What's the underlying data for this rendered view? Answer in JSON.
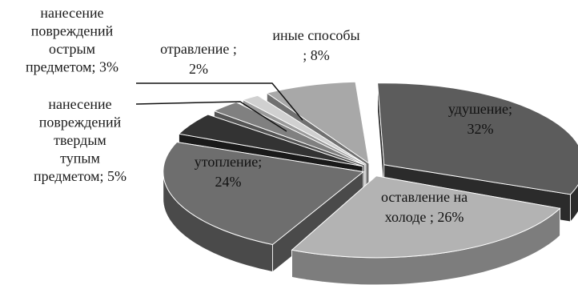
{
  "chart_data": {
    "type": "pie",
    "title": "",
    "unit": "%",
    "slices": [
      {
        "label_lines": [
          "удушение;",
          "32%"
        ],
        "value": 32,
        "color": "#5c5c5c",
        "side": "#2b2b2b"
      },
      {
        "label_lines": [
          "оставление на",
          "холоде ; 26%"
        ],
        "value": 26,
        "color": "#b3b3b3",
        "side": "#7d7d7d"
      },
      {
        "label_lines": [
          "утопление;",
          "24%"
        ],
        "value": 24,
        "color": "#6e6e6e",
        "side": "#4a4a4a"
      },
      {
        "label_lines": [
          "нанесение",
          "повреждений",
          "твердым",
          "тупым",
          "предметом; 5%"
        ],
        "value": 5,
        "color": "#333333",
        "side": "#1a1a1a"
      },
      {
        "label_lines": [
          "нанесение",
          "повреждений",
          "острым",
          "предметом; 3%"
        ],
        "value": 3,
        "color": "#808080",
        "side": "#555555"
      },
      {
        "label_lines": [
          "отравление ;",
          "2%"
        ],
        "value": 2,
        "color": "#d0d0d0",
        "side": "#9a9a9a"
      },
      {
        "label_lines": [
          "иные способы",
          "; 8%"
        ],
        "value": 8,
        "color": "#a8a8a8",
        "side": "#707070"
      }
    ]
  }
}
